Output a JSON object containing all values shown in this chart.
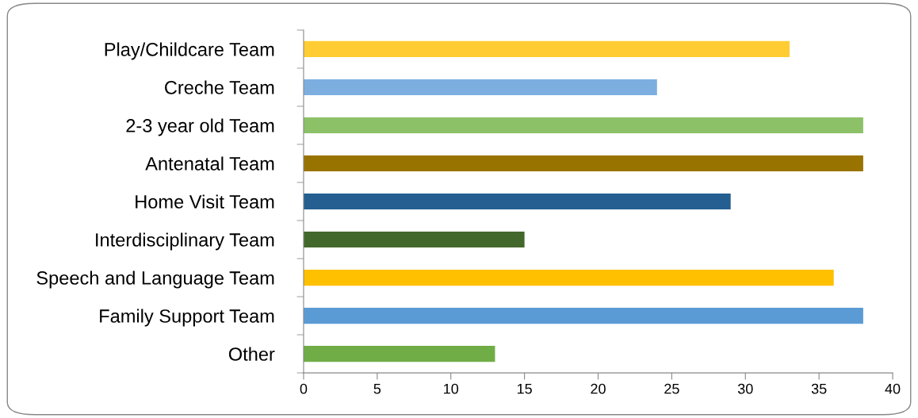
{
  "chart_data": {
    "type": "bar",
    "orientation": "horizontal",
    "categories": [
      "Play/Childcare Team",
      "Creche Team",
      "2-3 year old Team",
      "Antenatal Team",
      "Home Visit Team",
      "Interdisciplinary Team",
      "Speech and Language Team",
      "Family Support Team",
      "Other"
    ],
    "values": [
      33,
      24,
      38,
      38,
      29,
      15,
      36,
      38,
      13
    ],
    "colors": [
      "#ffcd33",
      "#7caee0",
      "#8cc168",
      "#997300",
      "#255e91",
      "#43682b",
      "#ffc000",
      "#5b9bd5",
      "#70ad47"
    ],
    "xlim": [
      0,
      40
    ],
    "xticks": [
      0,
      5,
      10,
      15,
      20,
      25,
      30,
      35,
      40
    ],
    "grid": false,
    "legend": false
  }
}
